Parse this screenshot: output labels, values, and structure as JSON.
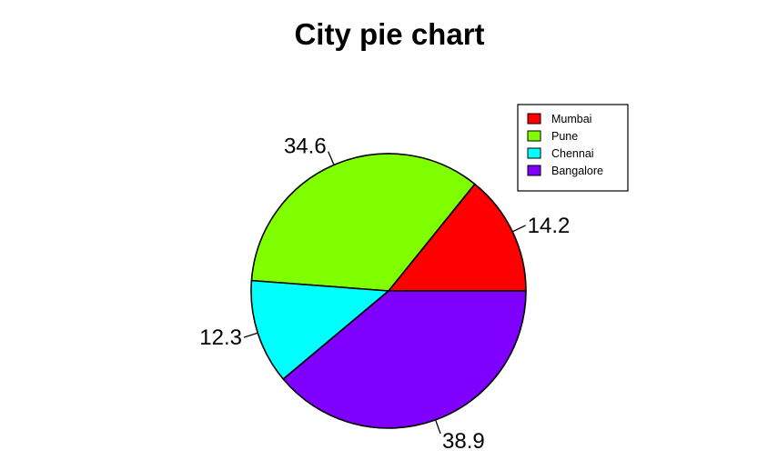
{
  "chart_data": {
    "type": "pie",
    "title": "City pie chart",
    "categories": [
      "Mumbai",
      "Pune",
      "Chennai",
      "Bangalore"
    ],
    "values": [
      14.2,
      34.6,
      12.3,
      38.9
    ],
    "labels": [
      "14.2",
      "34.6",
      "12.3",
      "38.9"
    ],
    "colors": [
      "#ff0000",
      "#80ff00",
      "#00ffff",
      "#8000ff"
    ],
    "start_angle_deg": 0,
    "direction": "counterclockwise",
    "legend": {
      "position": "top-right",
      "entries": [
        "Mumbai",
        "Pune",
        "Chennai",
        "Bangalore"
      ]
    }
  }
}
